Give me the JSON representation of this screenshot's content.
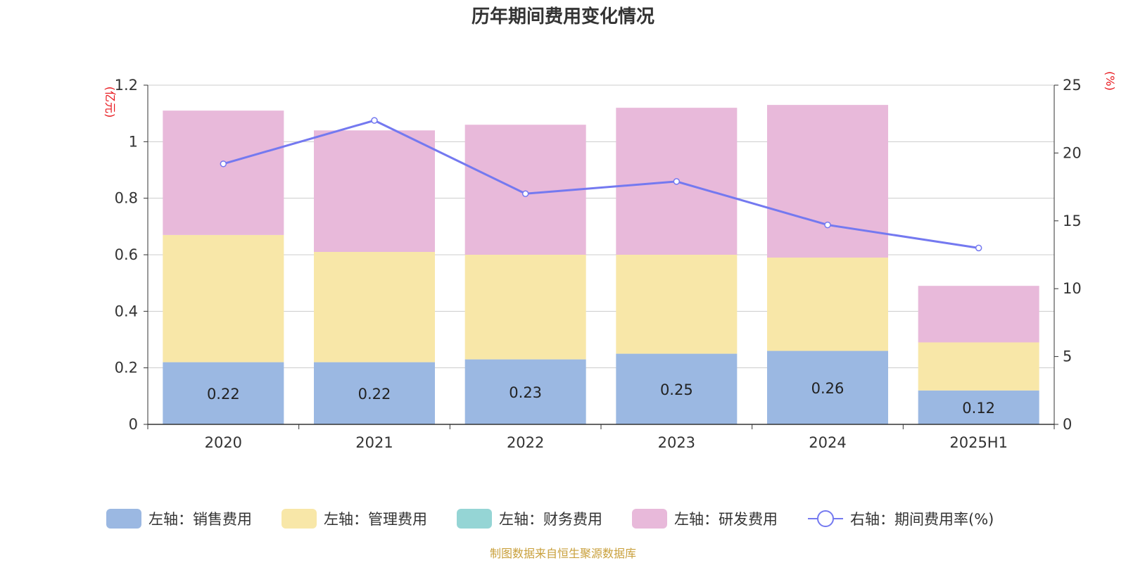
{
  "chart_data": {
    "type": "bar",
    "stacked": true,
    "title": "历年期间费用变化情况",
    "left_axis_unit": "(亿元)",
    "right_axis_unit": "(%)",
    "categories": [
      "2020",
      "2021",
      "2022",
      "2023",
      "2024",
      "2025H1"
    ],
    "y_left": {
      "min": 0,
      "max": 1.2,
      "ticks": [
        "0",
        "0.2",
        "0.4",
        "0.6",
        "0.8",
        "1",
        "1.2"
      ]
    },
    "y_right": {
      "min": 0,
      "max": 25,
      "ticks": [
        "0",
        "5",
        "10",
        "15",
        "20",
        "25"
      ]
    },
    "grid": true,
    "legend_position": "bottom",
    "series": [
      {
        "name": "左轴：销售费用",
        "axis": "left",
        "type": "bar",
        "color": "#9bb8e2",
        "values": [
          0.22,
          0.22,
          0.23,
          0.25,
          0.26,
          0.12
        ],
        "labels": [
          "0.22",
          "0.22",
          "0.23",
          "0.25",
          "0.26",
          "0.12"
        ]
      },
      {
        "name": "左轴：管理费用",
        "axis": "left",
        "type": "bar",
        "color": "#f8e7a8",
        "values": [
          0.45,
          0.39,
          0.37,
          0.35,
          0.33,
          0.17
        ]
      },
      {
        "name": "左轴：财务费用",
        "axis": "left",
        "type": "bar",
        "color": "#95d5d5",
        "values": [
          0,
          0,
          0,
          0,
          0,
          0
        ]
      },
      {
        "name": "左轴：研发费用",
        "axis": "left",
        "type": "bar",
        "color": "#e8b9da",
        "values": [
          0.44,
          0.43,
          0.46,
          0.52,
          0.54,
          0.2
        ]
      },
      {
        "name": "右轴：期间费用率(%)",
        "axis": "right",
        "type": "line",
        "color": "#7479f0",
        "values": [
          19.2,
          22.4,
          17.0,
          17.9,
          14.7,
          13.0
        ]
      }
    ],
    "source": "制图数据来自恒生聚源数据库"
  }
}
